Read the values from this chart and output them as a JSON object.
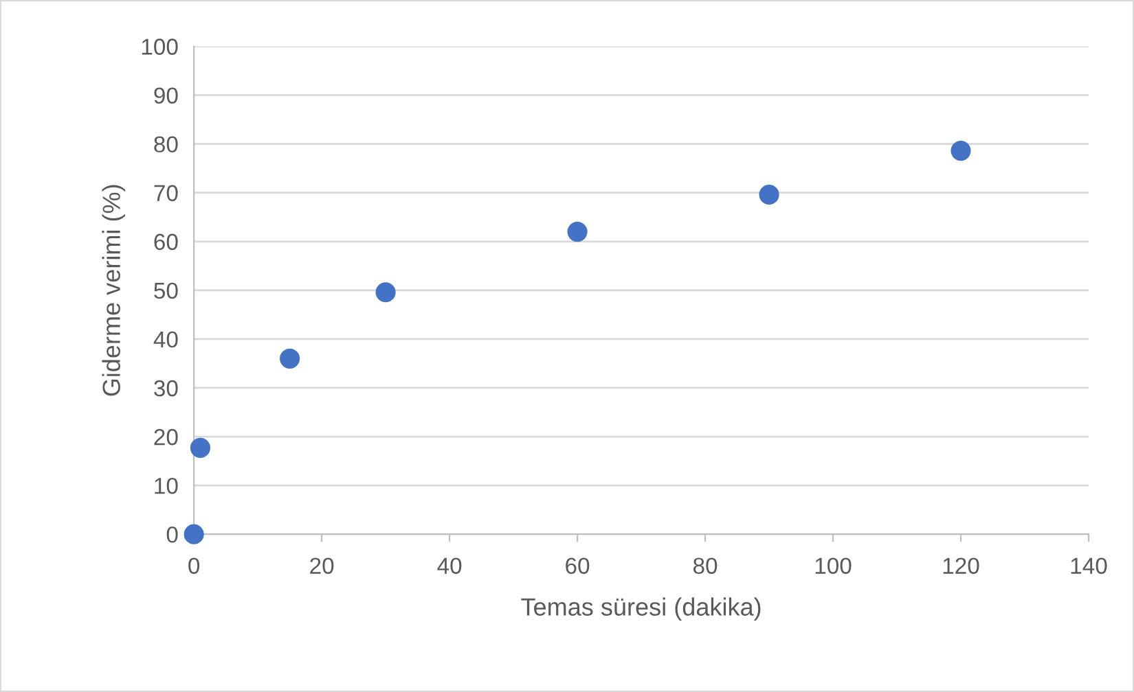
{
  "chart_data": {
    "type": "scatter",
    "xlabel": "Temas süresi (dakika)",
    "ylabel": "Giderme verimi (%)",
    "x": [
      0,
      1,
      15,
      30,
      60,
      90,
      120
    ],
    "series": [
      {
        "color": "#4472c4",
        "values": [
          0,
          17.7,
          36,
          49.6,
          62,
          69.6,
          78.6
        ]
      }
    ],
    "xlim": [
      0,
      140
    ],
    "xticks": [
      0,
      20,
      40,
      60,
      80,
      100,
      120,
      140
    ],
    "ylim": [
      0,
      100
    ],
    "yticks": [
      0,
      10,
      20,
      30,
      40,
      50,
      60,
      70,
      80,
      90,
      100
    ],
    "grid": "y",
    "marker": "circle",
    "legend": false
  }
}
